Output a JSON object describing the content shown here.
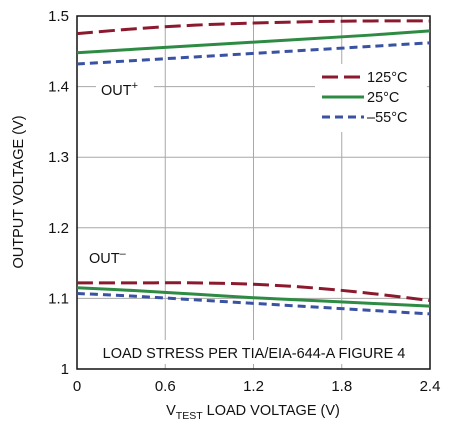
{
  "colors": {
    "series_125": "#8b1a2e",
    "series_25": "#2e8b43",
    "series_m55": "#3a52a2",
    "grid": "#a8a8a8",
    "frame": "#111111"
  },
  "chart_data": {
    "type": "line",
    "xlabel_main": "V",
    "xlabel_sub": "TEST",
    "xlabel_rest": " LOAD VOLTAGE (V)",
    "ylabel": "OUTPUT VOLTAGE (V)",
    "xlim": [
      0,
      2.4
    ],
    "ylim": [
      1.0,
      1.5
    ],
    "x_ticks": [
      "0",
      "0.6",
      "1.2",
      "1.8",
      "2.4"
    ],
    "y_ticks": [
      "1",
      "1.1",
      "1.2",
      "1.3",
      "1.4",
      "1.5"
    ],
    "grid": true,
    "legend_position": "top-right",
    "annotations": {
      "out_plus_base": "OUT",
      "out_plus_sup": "+",
      "out_minus_base": "OUT",
      "out_minus_sup": "–",
      "footer": "LOAD STRESS PER TIA/EIA-644-A FIGURE 4"
    },
    "series": [
      {
        "name": "125°C",
        "dash": "long-dash",
        "out_plus": {
          "x": [
            0,
            0.4,
            0.8,
            1.2,
            1.6,
            2.0,
            2.4
          ],
          "y": [
            1.475,
            1.482,
            1.487,
            1.49,
            1.492,
            1.493,
            1.493
          ]
        },
        "out_minus": {
          "x": [
            0,
            0.4,
            0.8,
            1.2,
            1.6,
            2.0,
            2.4
          ],
          "y": [
            1.122,
            1.122,
            1.122,
            1.12,
            1.115,
            1.107,
            1.097
          ]
        }
      },
      {
        "name": "25°C",
        "dash": "solid",
        "out_plus": {
          "x": [
            0,
            0.4,
            0.8,
            1.2,
            1.6,
            2.0,
            2.4
          ],
          "y": [
            1.448,
            1.453,
            1.458,
            1.463,
            1.468,
            1.473,
            1.479
          ]
        },
        "out_minus": {
          "x": [
            0,
            0.4,
            0.8,
            1.2,
            1.6,
            2.0,
            2.4
          ],
          "y": [
            1.115,
            1.111,
            1.106,
            1.101,
            1.097,
            1.093,
            1.089
          ]
        }
      },
      {
        "name": "–55°C",
        "dash": "short-dash",
        "out_plus": {
          "x": [
            0,
            0.4,
            0.8,
            1.2,
            1.6,
            2.0,
            2.4
          ],
          "y": [
            1.432,
            1.437,
            1.442,
            1.447,
            1.452,
            1.457,
            1.462
          ]
        },
        "out_minus": {
          "x": [
            0,
            0.4,
            0.8,
            1.2,
            1.6,
            2.0,
            2.4
          ],
          "y": [
            1.107,
            1.103,
            1.098,
            1.093,
            1.088,
            1.083,
            1.078
          ]
        }
      }
    ]
  }
}
